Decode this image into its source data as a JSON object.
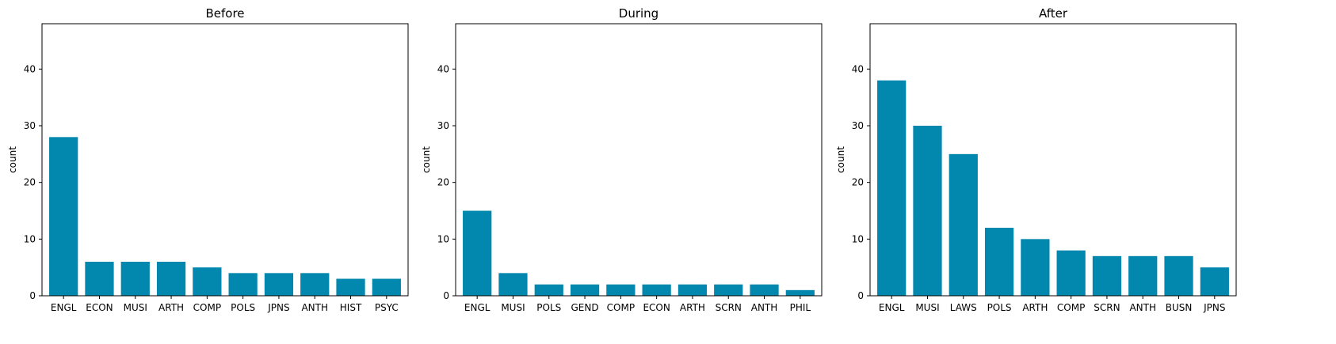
{
  "chart_data": [
    {
      "type": "bar",
      "title": "Before",
      "xlabel": "",
      "ylabel": "count",
      "ylim": [
        0,
        48
      ],
      "yticks": [
        0,
        10,
        20,
        30,
        40
      ],
      "categories": [
        "ENGL",
        "ECON",
        "MUSI",
        "ARTH",
        "COMP",
        "POLS",
        "JPNS",
        "ANTH",
        "HIST",
        "PSYC"
      ],
      "values": [
        28,
        6,
        6,
        6,
        5,
        4,
        4,
        4,
        3,
        3
      ],
      "color": "#0288ae"
    },
    {
      "type": "bar",
      "title": "During",
      "xlabel": "",
      "ylabel": "count",
      "ylim": [
        0,
        48
      ],
      "yticks": [
        0,
        10,
        20,
        30,
        40
      ],
      "categories": [
        "ENGL",
        "MUSI",
        "POLS",
        "GEND",
        "COMP",
        "ECON",
        "ARTH",
        "SCRN",
        "ANTH",
        "PHIL"
      ],
      "values": [
        15,
        4,
        2,
        2,
        2,
        2,
        2,
        2,
        2,
        1
      ],
      "color": "#0288ae"
    },
    {
      "type": "bar",
      "title": "After",
      "xlabel": "",
      "ylabel": "count",
      "ylim": [
        0,
        48
      ],
      "yticks": [
        0,
        10,
        20,
        30,
        40
      ],
      "categories": [
        "ENGL",
        "MUSI",
        "LAWS",
        "POLS",
        "ARTH",
        "COMP",
        "SCRN",
        "ANTH",
        "BUSN",
        "JPNS"
      ],
      "values": [
        38,
        30,
        25,
        12,
        10,
        8,
        7,
        7,
        7,
        5
      ],
      "color": "#0288ae"
    }
  ]
}
